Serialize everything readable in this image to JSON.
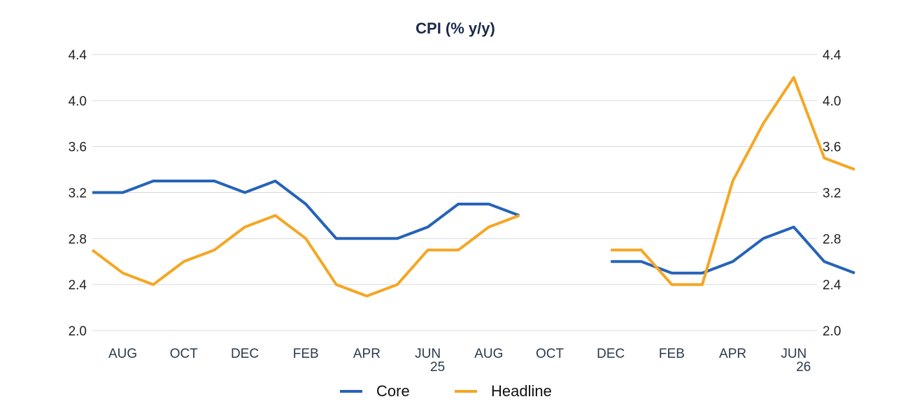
{
  "chart_data": {
    "type": "line",
    "title": "CPI (% y/y)",
    "ylim": [
      2.0,
      4.4
    ],
    "yticks": [
      "2.0",
      "2.4",
      "2.8",
      "3.2",
      "3.6",
      "4.0",
      "4.4"
    ],
    "grid": true,
    "legend_position": "bottom",
    "x_tick_labels": [
      {
        "label": "AUG",
        "index": 1
      },
      {
        "label": "OCT",
        "index": 3
      },
      {
        "label": "DEC",
        "index": 5
      },
      {
        "label": "FEB",
        "index": 7
      },
      {
        "label": "APR",
        "index": 9
      },
      {
        "label": "JUN",
        "index": 11
      },
      {
        "label": "AUG",
        "index": 13
      },
      {
        "label": "OCT",
        "index": 15
      },
      {
        "label": "DEC",
        "index": 17
      },
      {
        "label": "FEB",
        "index": 19
      },
      {
        "label": "APR",
        "index": 21
      },
      {
        "label": "JUN",
        "index": 23
      }
    ],
    "year_labels": [
      {
        "label": "25",
        "index": 11
      },
      {
        "label": "26",
        "index": 23
      }
    ],
    "series": [
      {
        "name": "Core",
        "color": "#2563b8",
        "values": [
          3.2,
          3.2,
          3.3,
          3.3,
          3.3,
          3.2,
          3.3,
          3.1,
          2.8,
          2.8,
          2.8,
          2.9,
          3.1,
          3.1,
          3.0,
          null,
          null,
          2.6,
          2.6,
          2.5,
          2.5,
          2.6,
          2.8,
          2.9,
          2.6,
          2.5
        ]
      },
      {
        "name": "Headline",
        "color": "#f5a623",
        "values": [
          2.7,
          2.5,
          2.4,
          2.6,
          2.7,
          2.9,
          3.0,
          2.8,
          2.4,
          2.3,
          2.4,
          2.7,
          2.7,
          2.9,
          3.0,
          null,
          null,
          2.7,
          2.7,
          2.4,
          2.4,
          3.3,
          3.8,
          4.2,
          3.5,
          3.4
        ]
      }
    ]
  }
}
